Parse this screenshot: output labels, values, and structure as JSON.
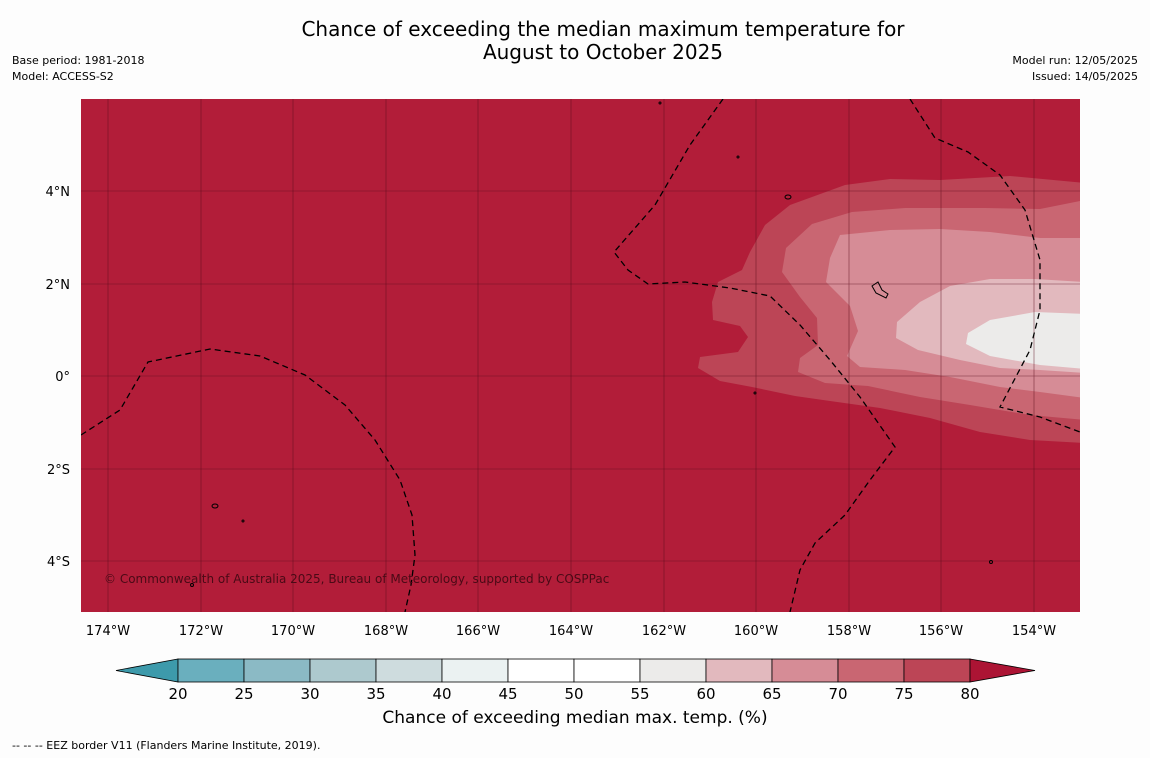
{
  "header": {
    "title_line1": "Chance of exceeding the median maximum temperature for",
    "title_line2": "August to October 2025",
    "base_period": "Base period: 1981-2018",
    "model": "Model: ACCESS-S2",
    "model_run": "Model run: 12/05/2025",
    "issued": "Issued: 14/05/2025"
  },
  "map": {
    "lat_labels": [
      "4°N",
      "2°N",
      "0°",
      "2°S",
      "4°S"
    ],
    "lon_labels": [
      "174°W",
      "172°W",
      "170°W",
      "168°W",
      "166°W",
      "164°W",
      "162°W",
      "160°W",
      "158°W",
      "156°W",
      "154°W"
    ],
    "copyright": "© Commonwealth of Australia 2025, Bureau of Meteorology, supported by COSPPac",
    "colors": {
      "background": "#b21d39",
      "grid": "#5a0d1c"
    }
  },
  "colorbar": {
    "ticks": [
      "20",
      "25",
      "30",
      "35",
      "40",
      "45",
      "50",
      "55",
      "60",
      "65",
      "70",
      "75",
      "80"
    ],
    "colors": [
      "#3d9aab",
      "#6aafbe",
      "#8bbac5",
      "#adc9ce",
      "#cedcde",
      "#ebf2f2",
      "#ffffff",
      "#ffffff",
      "#ecebea",
      "#e2b9be",
      "#d68c96",
      "#c96672",
      "#bc4556",
      "#ac1434"
    ],
    "label": "Chance of exceeding median max. temp. (%)"
  },
  "legend": {
    "eez_note": "--  --  -- EEZ border V11 (Flanders Marine Institute, 2019)."
  }
}
